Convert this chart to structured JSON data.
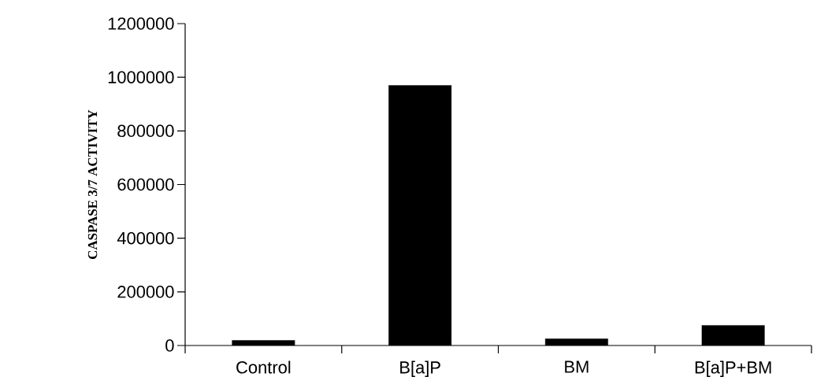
{
  "chart_data": {
    "type": "bar",
    "ylabel": "CASPASE 3/7 ACTIVITY",
    "categories": [
      "Control",
      "B[a]P",
      "BM",
      "B[a]P+BM"
    ],
    "values": [
      19000,
      970000,
      25000,
      75000
    ],
    "color": "#000000",
    "ylim": [
      0,
      1200000
    ],
    "yticks": [
      0,
      200000,
      400000,
      600000,
      800000,
      1000000,
      1200000
    ]
  }
}
